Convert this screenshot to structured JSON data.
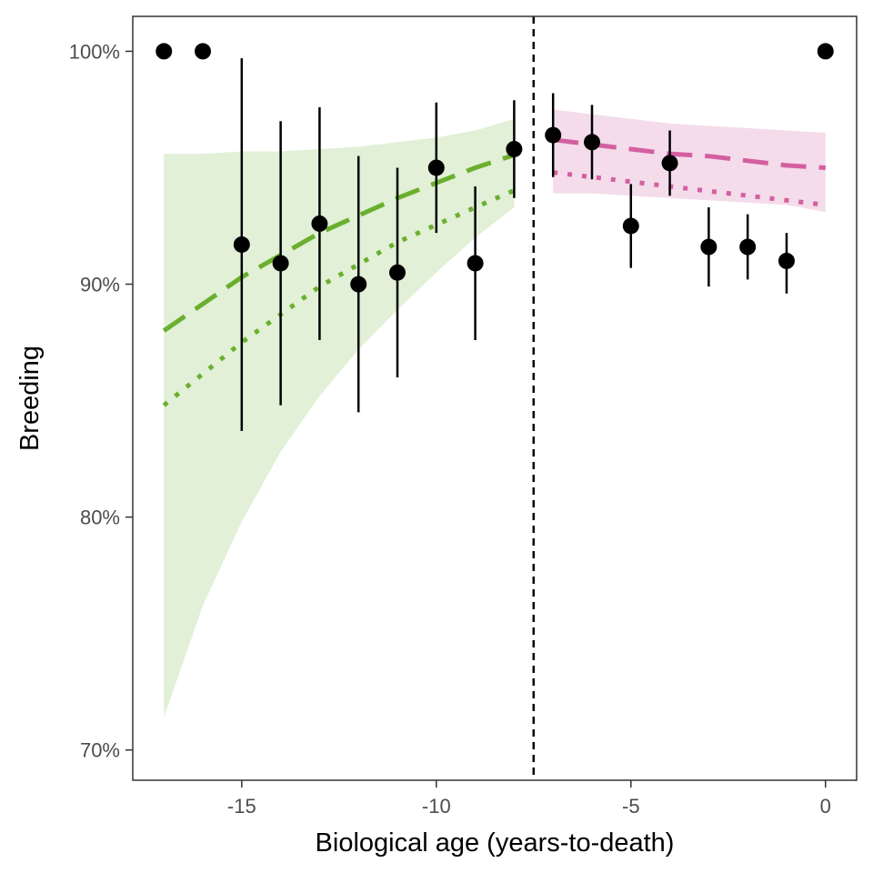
{
  "chart_data": {
    "type": "scatter",
    "title": "",
    "xlabel": "Biological age (years-to-death)",
    "ylabel": "Breeding",
    "xlim": [
      -17.8,
      0.8
    ],
    "ylim": [
      0.687,
      1.015
    ],
    "x_ticks": [
      {
        "value": -15,
        "label": "-15"
      },
      {
        "value": -10,
        "label": "-10"
      },
      {
        "value": -5,
        "label": "-5"
      },
      {
        "value": 0,
        "label": "0"
      }
    ],
    "y_ticks": [
      {
        "value": 0.7,
        "label": "70%"
      },
      {
        "value": 0.8,
        "label": "80%"
      },
      {
        "value": 0.9,
        "label": "90%"
      },
      {
        "value": 1.0,
        "label": "100%"
      }
    ],
    "grid": false,
    "threshold_x": -7.5,
    "colors": {
      "points": "#000000",
      "early_line": "#6aaf2e",
      "early_band": "#e1f0d6",
      "late_line": "#d45fa0",
      "late_band": "#f4dcea",
      "threshold": "#000000",
      "frame": "#333333"
    },
    "points": [
      {
        "x": -17,
        "y": 1.0
      },
      {
        "x": -16,
        "y": 1.0
      },
      {
        "x": -15,
        "y": 0.917,
        "ymin": 0.837,
        "ymax": 0.997
      },
      {
        "x": -14,
        "y": 0.909,
        "ymin": 0.848,
        "ymax": 0.97
      },
      {
        "x": -13,
        "y": 0.926,
        "ymin": 0.876,
        "ymax": 0.976
      },
      {
        "x": -12,
        "y": 0.9,
        "ymin": 0.845,
        "ymax": 0.955
      },
      {
        "x": -11,
        "y": 0.905,
        "ymin": 0.86,
        "ymax": 0.95
      },
      {
        "x": -10,
        "y": 0.95,
        "ymin": 0.922,
        "ymax": 0.978
      },
      {
        "x": -9,
        "y": 0.909,
        "ymin": 0.876,
        "ymax": 0.942
      },
      {
        "x": -8,
        "y": 0.958,
        "ymin": 0.937,
        "ymax": 0.979
      },
      {
        "x": -7,
        "y": 0.964,
        "ymin": 0.946,
        "ymax": 0.982
      },
      {
        "x": -6,
        "y": 0.961,
        "ymin": 0.945,
        "ymax": 0.977
      },
      {
        "x": -5,
        "y": 0.925,
        "ymin": 0.907,
        "ymax": 0.943
      },
      {
        "x": -4,
        "y": 0.952,
        "ymin": 0.938,
        "ymax": 0.966
      },
      {
        "x": -3,
        "y": 0.916,
        "ymin": 0.899,
        "ymax": 0.933
      },
      {
        "x": -2,
        "y": 0.916,
        "ymin": 0.902,
        "ymax": 0.93
      },
      {
        "x": -1,
        "y": 0.91,
        "ymin": 0.896,
        "ymax": 0.922
      },
      {
        "x": 0,
        "y": 1.0
      }
    ],
    "series": [
      {
        "segment": "early",
        "style": "dashed",
        "x": [
          -17,
          -15,
          -13,
          -11,
          -9,
          -7.9
        ],
        "y": [
          0.88,
          0.903,
          0.922,
          0.937,
          0.95,
          0.956
        ]
      },
      {
        "segment": "early",
        "style": "dotted",
        "x": [
          -17,
          -15,
          -13,
          -11,
          -9,
          -7.9
        ],
        "y": [
          0.848,
          0.875,
          0.899,
          0.918,
          0.933,
          0.941
        ]
      },
      {
        "segment": "late",
        "style": "dashed",
        "x": [
          -7,
          -6,
          -5,
          -4,
          -3,
          -2,
          -1,
          0
        ],
        "y": [
          0.962,
          0.96,
          0.958,
          0.956,
          0.955,
          0.953,
          0.951,
          0.95
        ]
      },
      {
        "segment": "late",
        "style": "dotted",
        "x": [
          -7,
          -6,
          -5,
          -4,
          -3,
          -2,
          -1,
          0
        ],
        "y": [
          0.948,
          0.946,
          0.944,
          0.942,
          0.94,
          0.938,
          0.936,
          0.934
        ]
      }
    ],
    "bands": [
      {
        "segment": "early",
        "x": [
          -17,
          -16,
          -15,
          -14,
          -13,
          -12,
          -11,
          -10,
          -9,
          -8
        ],
        "upper": [
          0.956,
          0.956,
          0.957,
          0.957,
          0.958,
          0.959,
          0.961,
          0.963,
          0.966,
          0.971
        ],
        "lower": [
          0.714,
          0.762,
          0.798,
          0.828,
          0.852,
          0.872,
          0.889,
          0.905,
          0.92,
          0.933
        ]
      },
      {
        "segment": "late",
        "x": [
          -7,
          -6,
          -5,
          -4,
          -3,
          -2,
          -1,
          0
        ],
        "upper": [
          0.975,
          0.973,
          0.971,
          0.969,
          0.968,
          0.967,
          0.966,
          0.965
        ],
        "lower": [
          0.939,
          0.939,
          0.938,
          0.937,
          0.936,
          0.935,
          0.934,
          0.931
        ]
      }
    ]
  }
}
